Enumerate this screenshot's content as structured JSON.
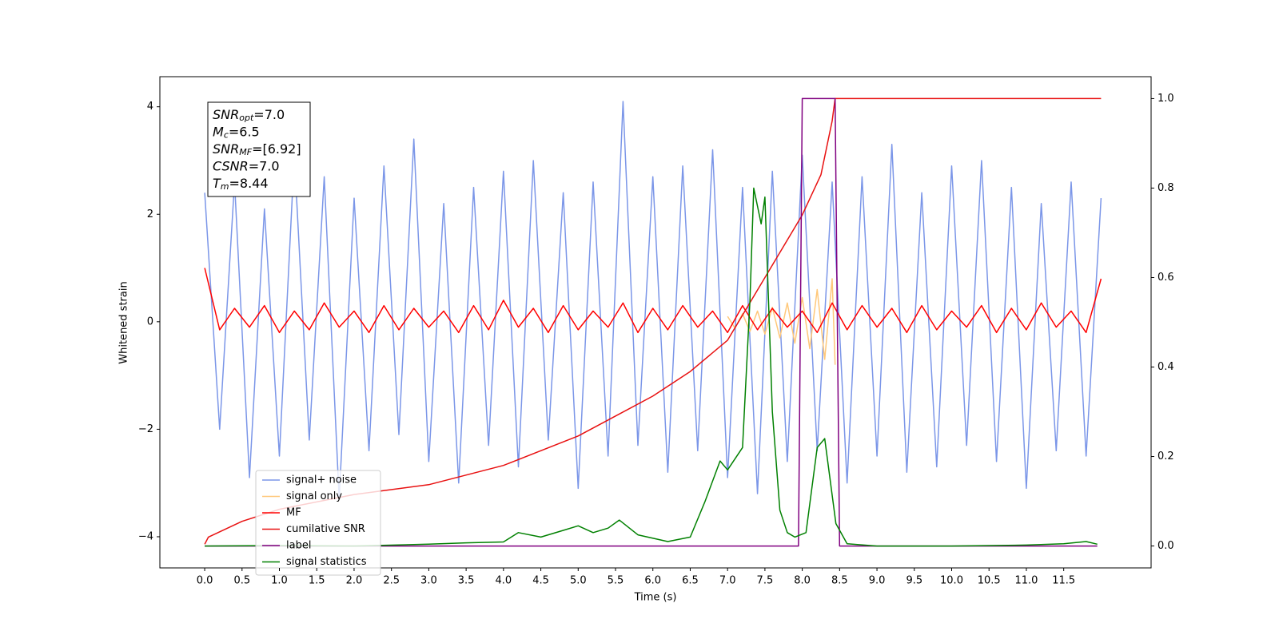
{
  "chart_data": {
    "type": "line",
    "xlabel": "Time (s)",
    "ylabel": "Whitened strain",
    "xlim": [
      -0.6,
      12.67
    ],
    "ylim": [
      -4.58,
      4.56
    ],
    "y2lim": [
      -0.049,
      1.049
    ],
    "xticks": [
      {
        "value": 0,
        "label": "0.0"
      },
      {
        "value": 0.5,
        "label": "0.5"
      },
      {
        "value": 1,
        "label": "1.0"
      },
      {
        "value": 1.5,
        "label": "1.5"
      },
      {
        "value": 2,
        "label": "2.0"
      },
      {
        "value": 2.5,
        "label": "2.5"
      },
      {
        "value": 3,
        "label": "3.0"
      },
      {
        "value": 3.5,
        "label": "3.5"
      },
      {
        "value": 4,
        "label": "4.0"
      },
      {
        "value": 4.5,
        "label": "4.5"
      },
      {
        "value": 5,
        "label": "5.0"
      },
      {
        "value": 5.5,
        "label": "5.5"
      },
      {
        "value": 6,
        "label": "6.0"
      },
      {
        "value": 6.5,
        "label": "6.5"
      },
      {
        "value": 7,
        "label": "7.0"
      },
      {
        "value": 7.5,
        "label": "7.5"
      },
      {
        "value": 8,
        "label": "8.0"
      },
      {
        "value": 8.5,
        "label": "8.5"
      },
      {
        "value": 9,
        "label": "9.0"
      },
      {
        "value": 9.5,
        "label": "9.5"
      },
      {
        "value": 10,
        "label": "10.0"
      },
      {
        "value": 10.5,
        "label": "10.5"
      },
      {
        "value": 11,
        "label": "11.0"
      },
      {
        "value": 11.5,
        "label": "11.5"
      }
    ],
    "yticks": [
      {
        "value": -4,
        "label": "−4"
      },
      {
        "value": -2,
        "label": "−2"
      },
      0,
      2,
      4
    ],
    "y2ticks": [
      {
        "value": 0,
        "label": "0.0"
      },
      {
        "value": 0.2,
        "label": "0.2"
      },
      {
        "value": 0.4,
        "label": "0.4"
      },
      {
        "value": 0.6,
        "label": "0.6"
      },
      {
        "value": 0.8,
        "label": "0.8"
      },
      {
        "value": 1,
        "label": "1.0"
      }
    ],
    "legend": "lower left",
    "annotation": [
      {
        "text": "SNR",
        "sub": "opt",
        "value": "=7.0"
      },
      {
        "text": "M",
        "sub": "c",
        "value": "=6.5"
      },
      {
        "text": "SNR",
        "sub": "MF",
        "value": "=[6.92]"
      },
      {
        "text": "CSNR",
        "sub": null,
        "value": "=7.0"
      },
      {
        "text": "T",
        "sub": "m",
        "value": "=8.44"
      }
    ],
    "series": [
      {
        "name": "signal+ noise",
        "color": "#7b96e8",
        "axis": "y",
        "x": [
          0,
          0.2,
          0.4,
          0.6,
          0.8,
          1,
          1.2,
          1.4,
          1.6,
          1.8,
          2,
          2.2,
          2.4,
          2.6,
          2.8,
          3,
          3.2,
          3.4,
          3.6,
          3.8,
          4,
          4.2,
          4.4,
          4.6,
          4.8,
          5,
          5.2,
          5.4,
          5.6,
          5.8,
          6,
          6.2,
          6.4,
          6.6,
          6.8,
          7,
          7.2,
          7.4,
          7.6,
          7.8,
          8,
          8.2,
          8.4,
          8.6,
          8.8,
          9,
          9.2,
          9.4,
          9.6,
          9.8,
          10,
          10.2,
          10.4,
          10.6,
          10.8,
          11,
          11.2,
          11.4,
          11.6,
          11.8,
          12
        ],
        "values": [
          2.4,
          -2.0,
          2.6,
          -2.9,
          2.1,
          -2.5,
          3.1,
          -2.2,
          2.7,
          -3.3,
          2.3,
          -2.4,
          2.9,
          -2.1,
          3.4,
          -2.6,
          2.2,
          -3.0,
          2.5,
          -2.3,
          2.8,
          -2.7,
          3.0,
          -2.2,
          2.4,
          -3.1,
          2.6,
          -2.5,
          4.1,
          -2.3,
          2.7,
          -2.8,
          2.9,
          -2.4,
          3.2,
          -2.9,
          2.5,
          -3.2,
          2.8,
          -2.6,
          3.1,
          -2.4,
          2.6,
          -3.0,
          2.7,
          -2.5,
          3.3,
          -2.8,
          2.4,
          -2.7,
          2.9,
          -2.3,
          3.0,
          -2.6,
          2.5,
          -3.1,
          2.2,
          -2.4,
          2.6,
          -2.5,
          2.3
        ]
      },
      {
        "name": "signal only",
        "color": "#ffc87a",
        "axis": "y",
        "x": [
          7.0,
          7.1,
          7.2,
          7.3,
          7.4,
          7.5,
          7.6,
          7.7,
          7.8,
          7.9,
          8.0,
          8.1,
          8.2,
          8.3,
          8.4,
          8.44
        ],
        "values": [
          0.1,
          -0.12,
          0.15,
          -0.18,
          0.2,
          -0.23,
          0.27,
          -0.3,
          0.35,
          -0.4,
          0.45,
          -0.5,
          0.6,
          -0.7,
          0.8,
          -0.8
        ]
      },
      {
        "name": "MF",
        "color": "#ff0000",
        "axis": "y",
        "x": [
          0,
          0.2,
          0.4,
          0.6,
          0.8,
          1,
          1.2,
          1.4,
          1.6,
          1.8,
          2,
          2.2,
          2.4,
          2.6,
          2.8,
          3,
          3.2,
          3.4,
          3.6,
          3.8,
          4,
          4.2,
          4.4,
          4.6,
          4.8,
          5,
          5.2,
          5.4,
          5.6,
          5.8,
          6,
          6.2,
          6.4,
          6.6,
          6.8,
          7,
          7.2,
          7.4,
          7.6,
          7.8,
          8,
          8.2,
          8.4,
          8.6,
          8.8,
          9,
          9.2,
          9.4,
          9.6,
          9.8,
          10,
          10.2,
          10.4,
          10.6,
          10.8,
          11,
          11.2,
          11.4,
          11.6,
          11.8,
          12
        ],
        "values": [
          1.0,
          -0.15,
          0.25,
          -0.1,
          0.3,
          -0.2,
          0.2,
          -0.15,
          0.35,
          -0.1,
          0.2,
          -0.2,
          0.3,
          -0.15,
          0.25,
          -0.1,
          0.2,
          -0.2,
          0.3,
          -0.15,
          0.4,
          -0.1,
          0.25,
          -0.2,
          0.3,
          -0.15,
          0.2,
          -0.1,
          0.35,
          -0.2,
          0.25,
          -0.15,
          0.3,
          -0.1,
          0.2,
          -0.2,
          0.3,
          -0.15,
          0.25,
          -0.1,
          0.2,
          -0.2,
          0.35,
          -0.15,
          0.3,
          -0.1,
          0.25,
          -0.2,
          0.3,
          -0.15,
          0.2,
          -0.1,
          0.3,
          -0.2,
          0.25,
          -0.15,
          0.35,
          -0.1,
          0.2,
          -0.2,
          0.8
        ]
      },
      {
        "name": "cumilative SNR",
        "color": "#e81010",
        "axis": "y2",
        "x": [
          0,
          0.05,
          0.5,
          1,
          2,
          3,
          4,
          5,
          6,
          6.5,
          7,
          7.5,
          7.75,
          8,
          8.25,
          8.4,
          8.44,
          12
        ],
        "values": [
          0.004,
          0.02,
          0.055,
          0.082,
          0.115,
          0.137,
          0.18,
          0.246,
          0.335,
          0.39,
          0.46,
          0.6,
          0.67,
          0.74,
          0.83,
          0.95,
          1.0,
          1.0
        ]
      },
      {
        "name": "label",
        "color": "#800080",
        "axis": "y2",
        "x": [
          0,
          7.95,
          8.0,
          8.44,
          8.5,
          11.95
        ],
        "values": [
          0,
          0,
          1,
          1,
          0,
          0
        ]
      },
      {
        "name": "signal statistics",
        "color": "#008000",
        "axis": "y2",
        "x": [
          0,
          1,
          2,
          3,
          3.5,
          4,
          4.2,
          4.5,
          4.8,
          5.0,
          5.2,
          5.4,
          5.55,
          5.8,
          6.2,
          6.5,
          6.7,
          6.9,
          7.0,
          7.2,
          7.3,
          7.35,
          7.45,
          7.5,
          7.6,
          7.7,
          7.8,
          7.9,
          8.05,
          8.2,
          8.3,
          8.45,
          8.6,
          9,
          10,
          11,
          11.5,
          11.8,
          11.95
        ],
        "values": [
          0,
          0.001,
          0.0,
          0.004,
          0.007,
          0.009,
          0.03,
          0.02,
          0.035,
          0.045,
          0.03,
          0.04,
          0.058,
          0.025,
          0.01,
          0.02,
          0.1,
          0.19,
          0.17,
          0.22,
          0.55,
          0.8,
          0.72,
          0.78,
          0.3,
          0.08,
          0.03,
          0.02,
          0.03,
          0.22,
          0.24,
          0.05,
          0.005,
          0.0,
          0.0,
          0.002,
          0.005,
          0.01,
          0.004
        ]
      }
    ]
  }
}
